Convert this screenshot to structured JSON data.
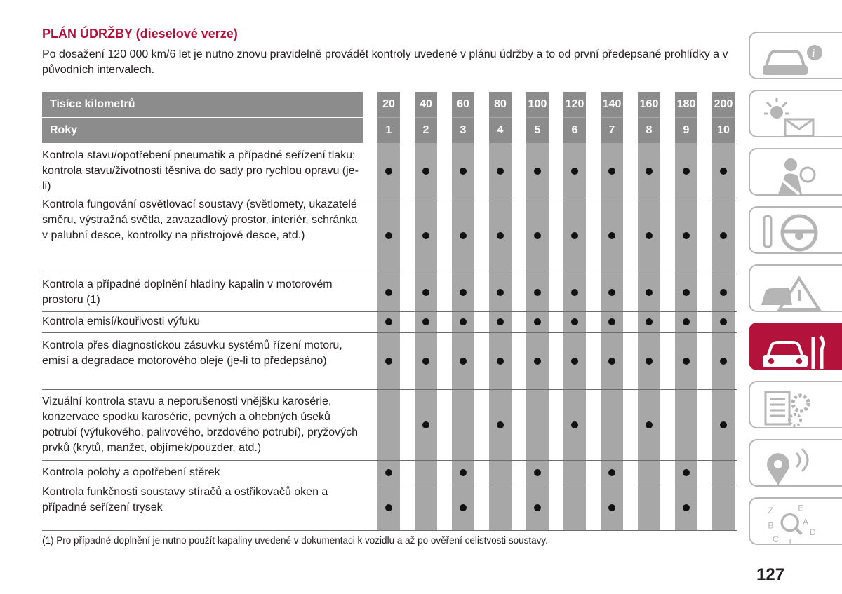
{
  "title": "PLÁN ÚDRŽBY (dieselové verze)",
  "intro": "Po dosažení 120 000 km/6 let je nutno znovu pravidelně provádět kontroly uvedené v plánu údržby a to od první předepsané prohlídky a v původních intervalech.",
  "header": {
    "km_label": "Tisíce kilometrů",
    "km": [
      "20",
      "40",
      "60",
      "80",
      "100",
      "120",
      "140",
      "160",
      "180",
      "200"
    ],
    "years_label": "Roky",
    "years": [
      "1",
      "2",
      "3",
      "4",
      "5",
      "6",
      "7",
      "8",
      "9",
      "10"
    ]
  },
  "rows": [
    {
      "text": "Kontrola stavu/opotřebení pneumatik a případné seřízení tlaku; kontrola stavu/životnosti těsniva do sady pro rychlou opravu (je-li)",
      "marks": [
        1,
        1,
        1,
        1,
        1,
        1,
        1,
        1,
        1,
        1
      ]
    },
    {
      "text": "Kontrola fungování osvětlovací soustavy (světlomety, ukazatelé směru, výstražná světla, zavazadlový prostor, interiér, schránka v palubní desce, kontrolky na přístrojové desce, atd.)",
      "marks": [
        1,
        1,
        1,
        1,
        1,
        1,
        1,
        1,
        1,
        1
      ]
    },
    {
      "text": "Kontrola a případné doplnění hladiny kapalin v motorovém prostoru (1)",
      "marks": [
        1,
        1,
        1,
        1,
        1,
        1,
        1,
        1,
        1,
        1
      ]
    },
    {
      "text": "Kontrola emisí/kouřivosti výfuku",
      "marks": [
        1,
        1,
        1,
        1,
        1,
        1,
        1,
        1,
        1,
        1
      ]
    },
    {
      "text": "Kontrola přes diagnostickou zásuvku systémů řízení motoru, emisí a degradace motorového oleje (je-li to předepsáno)",
      "marks": [
        1,
        1,
        1,
        1,
        1,
        1,
        1,
        1,
        1,
        1
      ]
    },
    {
      "text": "Vizuální kontrola stavu a neporušenosti vnějšku karosérie, konzervace spodku karosérie, pevných a ohebných úseků potrubí (výfukového, palivového, brzdového potrubí), pryžových prvků (krytů, manžet, objímek/pouzder, atd.)",
      "marks": [
        0,
        1,
        0,
        1,
        0,
        1,
        0,
        1,
        0,
        1
      ]
    },
    {
      "text": "Kontrola polohy a opotřebení stěrek",
      "marks": [
        1,
        0,
        1,
        0,
        1,
        0,
        1,
        0,
        1,
        0
      ]
    },
    {
      "text": "Kontrola funkčnosti soustavy stíračů a ostřikovačů oken a případné seřízení trysek",
      "marks": [
        1,
        0,
        1,
        0,
        1,
        0,
        1,
        0,
        1,
        0
      ]
    }
  ],
  "footnote": "(1) Pro případné doplnění je nutno použít kapaliny uvedené v dokumentaci k vozidlu a až po ověření celistvosti soustavy.",
  "page_number": "127",
  "side_tabs": [
    {
      "icon": "car-info-icon",
      "active": false
    },
    {
      "icon": "light-envelope-icon",
      "active": false
    },
    {
      "icon": "seatbelt-airbag-icon",
      "active": false
    },
    {
      "icon": "key-steering-wheel-icon",
      "active": false
    },
    {
      "icon": "car-warning-triangle-icon",
      "active": false
    },
    {
      "icon": "car-wrench-icon",
      "active": true
    },
    {
      "icon": "list-gears-icon",
      "active": false
    },
    {
      "icon": "radio-music-icon",
      "active": false
    },
    {
      "icon": "alphabet-index-icon",
      "active": false
    }
  ],
  "tab_letters": [
    "Z",
    "E",
    "B",
    "A",
    "C",
    "T",
    "D"
  ],
  "colors": {
    "accent": "#b3123a",
    "header_gray": "#8c8c8c",
    "column_gray": "#a7a7a7"
  }
}
